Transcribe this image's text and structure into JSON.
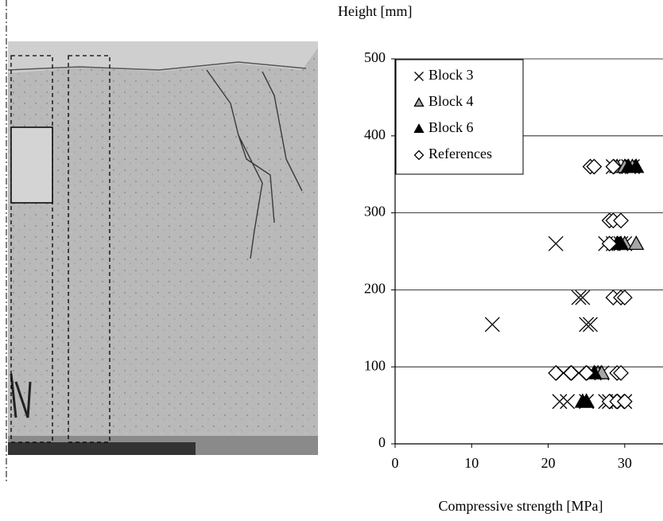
{
  "chart_data": {
    "type": "scatter",
    "ylabel": "Height [mm]",
    "xlabel": "Compressive strength [MPa]",
    "xlim": [
      0,
      35
    ],
    "xticks": [
      0,
      10,
      20,
      30
    ],
    "ylim": [
      0,
      500
    ],
    "yticks": [
      0,
      100,
      200,
      300,
      400,
      500
    ],
    "grid": true,
    "legend": "upper left",
    "series": [
      {
        "name": "Block 3",
        "color": "#000000",
        "marker": "cross",
        "x": [
          21.5,
          22.5,
          25,
          27.5,
          28,
          29,
          30,
          24,
          24.5,
          12.7,
          25,
          25.5,
          21,
          27.5,
          28.5,
          29.5,
          30,
          22,
          24,
          26,
          27,
          28.5,
          29.5,
          30.5,
          31
        ],
        "values": [
          55,
          55,
          55,
          55,
          55,
          55,
          55,
          190,
          190,
          155,
          155,
          155,
          260,
          260,
          260,
          260,
          260,
          92,
          92,
          92,
          92,
          360,
          360,
          360,
          360
        ]
      },
      {
        "name": "Block 4",
        "color": "#a6a6a6",
        "marker": "triangle",
        "x": [
          25,
          26.5,
          27,
          30,
          31.5,
          29,
          30,
          31
        ],
        "values": [
          55,
          92,
          92,
          260,
          260,
          360,
          360,
          360
        ]
      },
      {
        "name": "Block 6",
        "color": "#000000",
        "marker": "triangle",
        "x": [
          24.5,
          25,
          26,
          29,
          29.5,
          30.5,
          31.5
        ],
        "values": [
          55,
          55,
          92,
          260,
          260,
          360,
          360
        ]
      },
      {
        "name": "References",
        "color": "#ffffff",
        "marker": "diamond",
        "x": [
          21,
          23,
          25,
          29,
          29.5,
          28,
          29,
          30,
          28.5,
          29.5,
          30,
          28,
          28.5,
          29.5,
          28,
          25.5,
          26,
          28.5
        ],
        "values": [
          92,
          92,
          92,
          92,
          92,
          55,
          55,
          55,
          190,
          190,
          190,
          290,
          290,
          290,
          260,
          360,
          360,
          360
        ]
      }
    ]
  }
}
